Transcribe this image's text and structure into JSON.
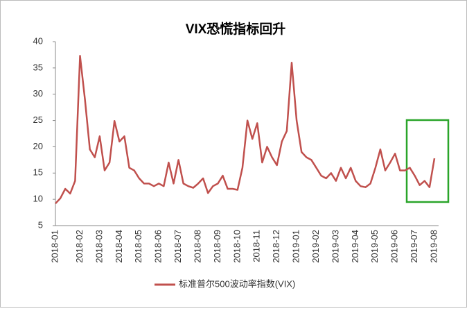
{
  "chart_data": {
    "type": "line",
    "title": "VIX恐慌指标回升",
    "categories": [
      "2018-01",
      null,
      null,
      null,
      null,
      "2018-02",
      null,
      null,
      null,
      "2018-03",
      null,
      null,
      null,
      "2018-04",
      null,
      null,
      null,
      "2018-05",
      null,
      null,
      null,
      "2018-06",
      null,
      null,
      null,
      "2018-07",
      null,
      null,
      null,
      "2018-08",
      null,
      null,
      null,
      "2018-09",
      null,
      null,
      null,
      "2018-10",
      null,
      null,
      null,
      "2018-11",
      null,
      null,
      null,
      "2018-12",
      null,
      null,
      null,
      "2019-01",
      null,
      null,
      null,
      "2019-02",
      null,
      null,
      null,
      "2019-03",
      null,
      null,
      null,
      "2019-04",
      null,
      null,
      null,
      "2019-05",
      null,
      null,
      null,
      "2019-06",
      null,
      null,
      null,
      "2019-07",
      null,
      null,
      null,
      "2019-08"
    ],
    "series": [
      {
        "name": "标准普尔500波动率指数(VIX)",
        "color": "#c0504d",
        "values": [
          9.2,
          10.2,
          12,
          11.1,
          13.5,
          37.3,
          29,
          19.5,
          18,
          22,
          15.5,
          17,
          24.9,
          21,
          22,
          16,
          15.5,
          14,
          13,
          13,
          12.5,
          13,
          12.5,
          17,
          13,
          17.5,
          13,
          12.5,
          12.2,
          13,
          14,
          11.2,
          12.5,
          13,
          14.5,
          12,
          12,
          11.8,
          16,
          25,
          21.5,
          24.5,
          17,
          20,
          18,
          16.5,
          21,
          23,
          36,
          25,
          19,
          18,
          17.5,
          16,
          14.5,
          14,
          15,
          13.5,
          16,
          14,
          16,
          13.5,
          12.5,
          12.3,
          13,
          16,
          19.5,
          15.5,
          17,
          18.7,
          15.5,
          15.5,
          16,
          14.5,
          12.7,
          13.5,
          12.3,
          17.8
        ]
      }
    ],
    "ylim": [
      5,
      40
    ],
    "yticks": [
      5,
      10,
      15,
      20,
      25,
      30,
      35,
      40
    ],
    "grid": false
  }
}
